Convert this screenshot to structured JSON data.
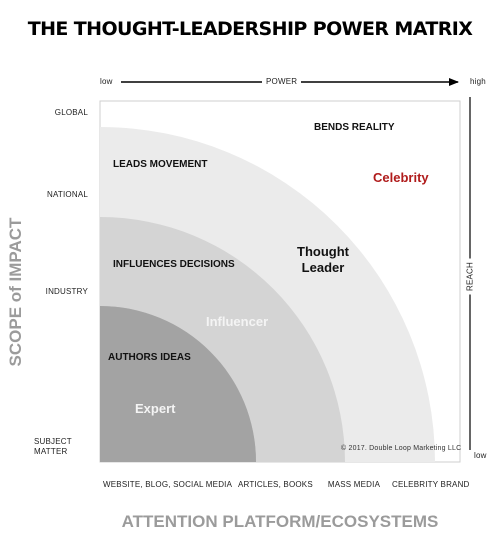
{
  "title": "THE THOUGHT-LEADERSHIP POWER MATRIX",
  "top_axis": {
    "low": "low",
    "label": "POWER",
    "high": "high"
  },
  "right_axis": {
    "label": "REACH",
    "low": "low"
  },
  "y_axis": {
    "title": "SCOPE of IMPACT",
    "ticks": [
      "GLOBAL",
      "NATIONAL",
      "INDUSTRY",
      "SUBJECT MATTER"
    ]
  },
  "x_axis": {
    "title": "ATTENTION PLATFORM/ECOSYSTEMS",
    "ticks": [
      "WEBSITE, BLOG, SOCIAL MEDIA",
      "ARTICLES, BOOKS",
      "MASS MEDIA",
      "CELEBRITY BRAND"
    ]
  },
  "zones": {
    "bends_reality": "BENDS REALITY",
    "leads_movement": "LEADS MOVEMENT",
    "influences_decisions": "INFLUENCES DECISIONS",
    "authors_ideas": "AUTHORS IDEAS"
  },
  "tiers": {
    "celebrity": "Celebrity",
    "thought_leader": "Thought Leader",
    "influencer": "Influencer",
    "expert": "Expert"
  },
  "copyright": "© 2017. Double Loop Marketing LLC",
  "colors": {
    "outer_band": "#ebebeb",
    "thought_band": "#d4d4d4",
    "influencer_band": "#bdbdbd",
    "expert_core": "#a3a3a3",
    "celebrity_text": "#b01c1c",
    "axis_title": "#9b9b9b"
  }
}
